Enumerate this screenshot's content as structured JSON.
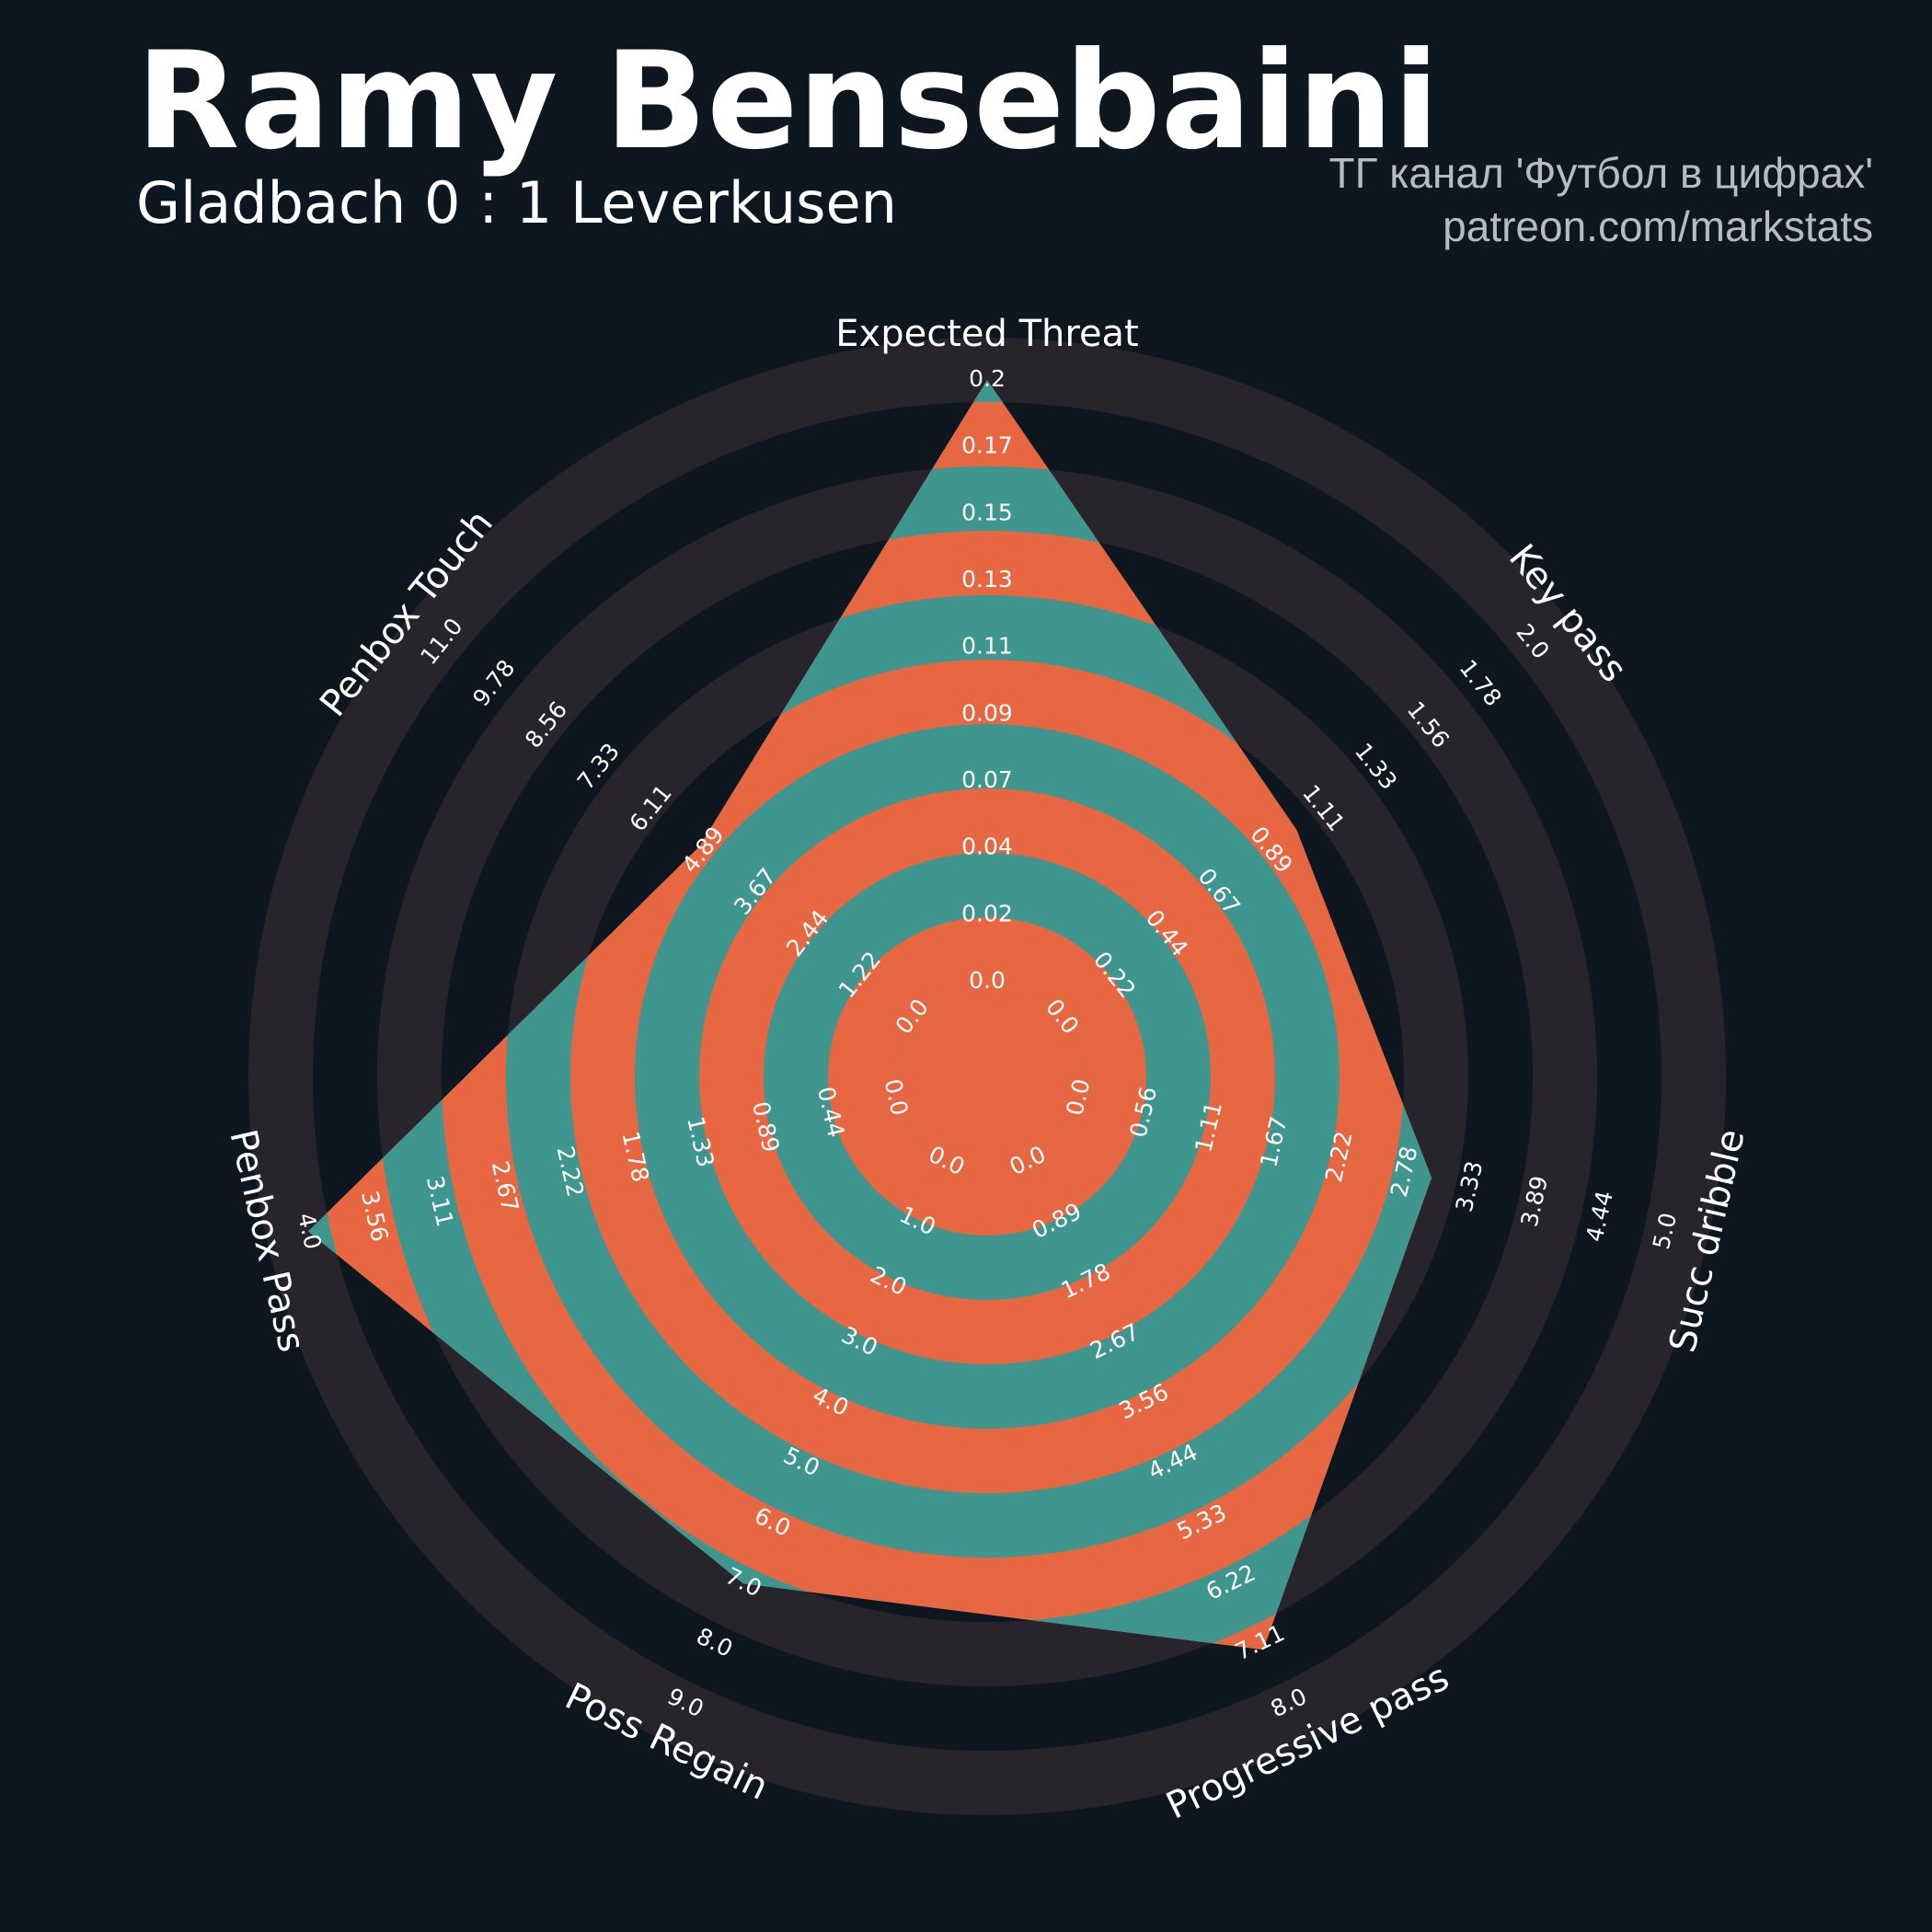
{
  "header": {
    "title": "Ramy Bensebaini",
    "subtitle": "Gladbach 0 : 1 Leverkusen",
    "credit_line1": "ТГ канал 'Футбол в цифрах'",
    "credit_line2": "patreon.com/markstats"
  },
  "colors": {
    "background": "#0e1720",
    "outer_ring": "#27242b",
    "inner_ring": "#0e1720",
    "shape_teal": "#3e968f",
    "shape_orange": "#e66742",
    "text": "#ffffff",
    "credit_text": "#b8bcc2"
  },
  "chart_data": {
    "type": "radar",
    "params": [
      "Expected Threat",
      "Key pass",
      "Succ dribble",
      "Progressive pass",
      "Poss Regain",
      "Penbox Pass",
      "Penbox Touch"
    ],
    "ranges": [
      [
        0,
        0.2
      ],
      [
        0,
        2
      ],
      [
        0,
        5
      ],
      [
        0,
        8
      ],
      [
        0,
        9
      ],
      [
        0,
        4
      ],
      [
        0,
        11
      ]
    ],
    "values": [
      0.2,
      1.0,
      3.0,
      7.2,
      7.0,
      4.0,
      5.0
    ],
    "tick_labels": [
      [
        "0.0",
        "0.02",
        "0.04",
        "0.07",
        "0.09",
        "0.11",
        "0.13",
        "0.15",
        "0.17",
        "0.2"
      ],
      [
        "0.0",
        "0.22",
        "0.44",
        "0.67",
        "0.89",
        "1.11",
        "1.33",
        "1.56",
        "1.78",
        "2.0"
      ],
      [
        "0.0",
        "0.56",
        "1.11",
        "1.67",
        "2.22",
        "2.78",
        "3.33",
        "3.89",
        "4.44",
        "5.0"
      ],
      [
        "0.0",
        "0.89",
        "1.78",
        "2.67",
        "3.56",
        "4.44",
        "5.33",
        "6.22",
        "7.11",
        "8.0"
      ],
      [
        "0.0",
        "1.0",
        "2.0",
        "3.0",
        "4.0",
        "5.0",
        "6.0",
        "7.0",
        "8.0",
        "9.0"
      ],
      [
        "0.0",
        "0.44",
        "0.89",
        "1.33",
        "1.78",
        "2.22",
        "2.67",
        "3.11",
        "3.56",
        "4.0"
      ],
      [
        "0.0",
        "1.22",
        "2.44",
        "3.67",
        "4.89",
        "6.11",
        "7.33",
        "8.56",
        "9.78",
        "11.0"
      ]
    ],
    "grid": true,
    "legend": "none"
  }
}
